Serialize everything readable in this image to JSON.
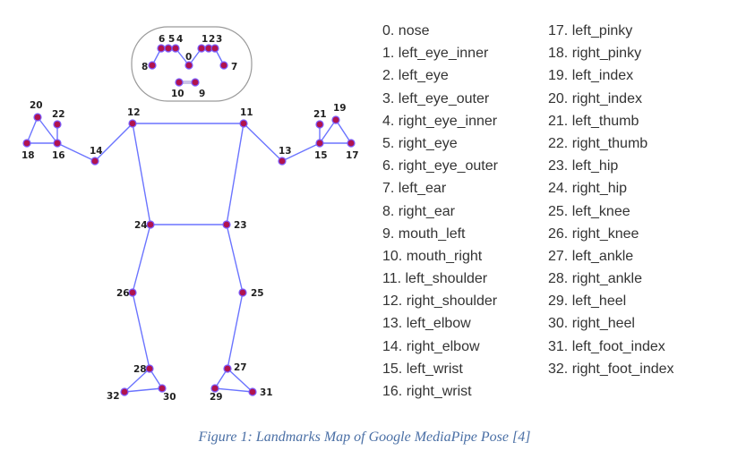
{
  "colors": {
    "edge": "#6b74ff",
    "point_fill": "#b0134e",
    "point_stroke": "#7b5cff",
    "head_box": "#9a9a9a",
    "caption": "#4a6fa5"
  },
  "landmarks": [
    {
      "id": 0,
      "name": "nose"
    },
    {
      "id": 1,
      "name": "left_eye_inner"
    },
    {
      "id": 2,
      "name": "left_eye"
    },
    {
      "id": 3,
      "name": "left_eye_outer"
    },
    {
      "id": 4,
      "name": "right_eye_inner"
    },
    {
      "id": 5,
      "name": "right_eye"
    },
    {
      "id": 6,
      "name": "right_eye_outer"
    },
    {
      "id": 7,
      "name": "left_ear"
    },
    {
      "id": 8,
      "name": "right_ear"
    },
    {
      "id": 9,
      "name": "mouth_left"
    },
    {
      "id": 10,
      "name": "mouth_right"
    },
    {
      "id": 11,
      "name": "left_shoulder"
    },
    {
      "id": 12,
      "name": "right_shoulder"
    },
    {
      "id": 13,
      "name": "left_elbow"
    },
    {
      "id": 14,
      "name": "right_elbow"
    },
    {
      "id": 15,
      "name": "left_wrist"
    },
    {
      "id": 16,
      "name": "right_wrist"
    },
    {
      "id": 17,
      "name": "left_pinky"
    },
    {
      "id": 18,
      "name": "right_pinky"
    },
    {
      "id": 19,
      "name": "left_index"
    },
    {
      "id": 20,
      "name": "right_index"
    },
    {
      "id": 21,
      "name": "left_thumb"
    },
    {
      "id": 22,
      "name": "right_thumb"
    },
    {
      "id": 23,
      "name": "left_hip"
    },
    {
      "id": 24,
      "name": "right_hip"
    },
    {
      "id": 25,
      "name": "left_knee"
    },
    {
      "id": 26,
      "name": "right_knee"
    },
    {
      "id": 27,
      "name": "left_ankle"
    },
    {
      "id": 28,
      "name": "right_ankle"
    },
    {
      "id": 29,
      "name": "left_heel"
    },
    {
      "id": 30,
      "name": "right_heel"
    },
    {
      "id": 31,
      "name": "left_foot_index"
    },
    {
      "id": 32,
      "name": "right_foot_index"
    }
  ],
  "list_col_1": [
    "0. nose",
    "1. left_eye_inner",
    "2. left_eye",
    "3. left_eye_outer",
    "4. right_eye_inner",
    "5. right_eye",
    "6. right_eye_outer",
    "7. left_ear",
    "8. right_ear",
    "9. mouth_left",
    "10. mouth_right",
    "11. left_shoulder",
    "12. right_shoulder",
    "13. left_elbow",
    "14. right_elbow",
    "15. left_wrist",
    "16. right_wrist"
  ],
  "list_col_2": [
    "17. left_pinky",
    "18. right_pinky",
    "19. left_index",
    "20. right_index",
    "21. left_thumb",
    "22. right_thumb",
    "23. left_hip",
    "24. right_hip",
    "25. left_knee",
    "26. right_knee",
    "27. left_ankle",
    "28. right_ankle",
    "29. left_heel",
    "30. right_heel",
    "31. left_foot_index",
    "32. right_foot_index"
  ],
  "connections": [
    [
      12,
      11
    ],
    [
      12,
      24
    ],
    [
      11,
      23
    ],
    [
      24,
      23
    ],
    [
      12,
      14
    ],
    [
      14,
      16
    ],
    [
      16,
      18
    ],
    [
      16,
      20
    ],
    [
      16,
      22
    ],
    [
      18,
      20
    ],
    [
      11,
      13
    ],
    [
      13,
      15
    ],
    [
      15,
      17
    ],
    [
      15,
      19
    ],
    [
      15,
      21
    ],
    [
      17,
      19
    ],
    [
      24,
      26
    ],
    [
      26,
      28
    ],
    [
      28,
      30
    ],
    [
      28,
      32
    ],
    [
      30,
      32
    ],
    [
      23,
      25
    ],
    [
      25,
      27
    ],
    [
      27,
      29
    ],
    [
      27,
      31
    ],
    [
      29,
      31
    ],
    [
      6,
      5
    ],
    [
      5,
      4
    ],
    [
      4,
      0
    ],
    [
      0,
      1
    ],
    [
      1,
      2
    ],
    [
      2,
      3
    ],
    [
      6,
      8
    ],
    [
      3,
      7
    ],
    [
      10,
      9
    ]
  ],
  "caption": "Figure 1: Landmarks Map of Google MediaPipe Pose [4]"
}
